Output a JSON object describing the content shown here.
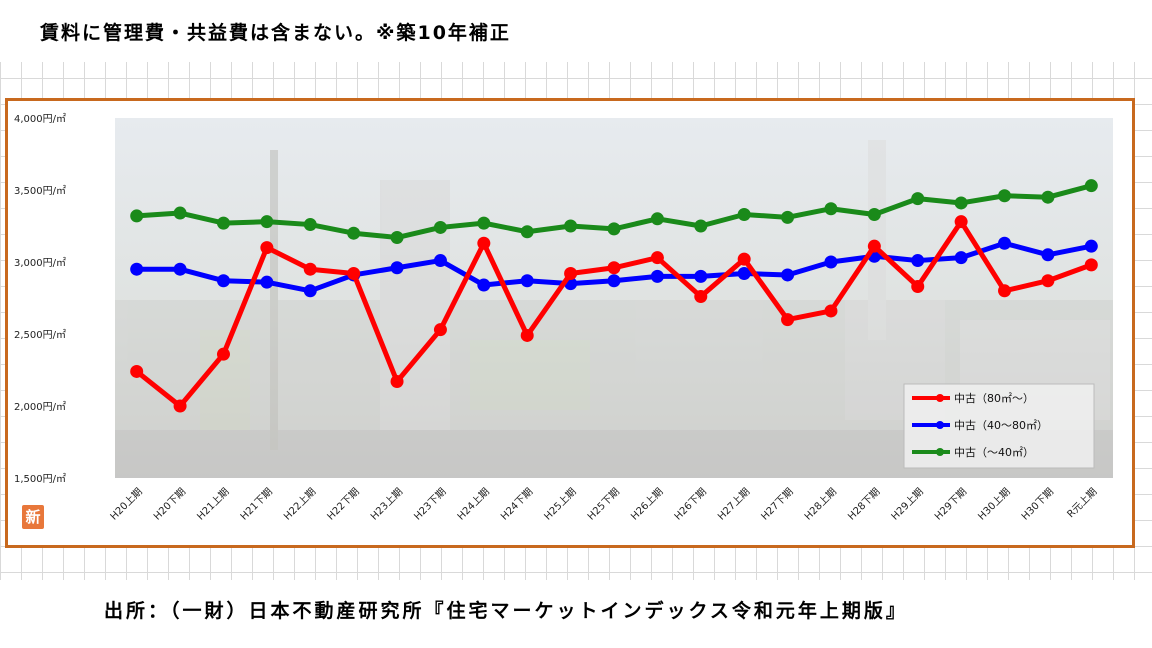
{
  "header": {
    "note": "賃料に管理費・共益費は含まない。※築10年補正"
  },
  "footer": {
    "source": "出所：（一財）日本不動産研究所『住宅マーケットインデックス令和元年上期版』"
  },
  "badge": {
    "label": "新"
  },
  "chart_data": {
    "type": "line",
    "categories": [
      "H20上期",
      "H20下期",
      "H21上期",
      "H21下期",
      "H22上期",
      "H22下期",
      "H23上期",
      "H23下期",
      "H24上期",
      "H24下期",
      "H25上期",
      "H25下期",
      "H26上期",
      "H26下期",
      "H27上期",
      "H27下期",
      "H28上期",
      "H28下期",
      "H29上期",
      "H29下期",
      "H30上期",
      "H30下期",
      "R元上期"
    ],
    "ylim": [
      1500,
      4000
    ],
    "yticks": [
      {
        "value": 4000,
        "label": "4,000円/㎡"
      },
      {
        "value": 3500,
        "label": "3,500円/㎡"
      },
      {
        "value": 3000,
        "label": "3,000円/㎡"
      },
      {
        "value": 2500,
        "label": "2,500円/㎡"
      },
      {
        "value": 2000,
        "label": "2,000円/㎡"
      },
      {
        "value": 1500,
        "label": "1,500円/㎡"
      }
    ],
    "legend_position": "bottom-right",
    "series": [
      {
        "name": "中古（80㎡～）",
        "color": "#ff0000",
        "values": [
          2240,
          2000,
          2360,
          3100,
          2950,
          2920,
          2170,
          2530,
          3130,
          2490,
          2920,
          2960,
          3030,
          2760,
          3020,
          2600,
          2660,
          3110,
          2830,
          3280,
          2800,
          2870,
          2980
        ]
      },
      {
        "name": "中古（40～80㎡）",
        "color": "#0000ff",
        "values": [
          2950,
          2950,
          2870,
          2860,
          2800,
          2910,
          2960,
          3010,
          2840,
          2870,
          2850,
          2870,
          2900,
          2900,
          2920,
          2910,
          3000,
          3040,
          3010,
          3030,
          3130,
          3050,
          3110
        ]
      },
      {
        "name": "中古（～40㎡）",
        "color": "#1a8a1a",
        "values": [
          3320,
          3340,
          3270,
          3280,
          3260,
          3200,
          3170,
          3240,
          3270,
          3210,
          3250,
          3230,
          3300,
          3250,
          3330,
          3310,
          3370,
          3330,
          3440,
          3410,
          3460,
          3450,
          3530
        ]
      }
    ]
  }
}
